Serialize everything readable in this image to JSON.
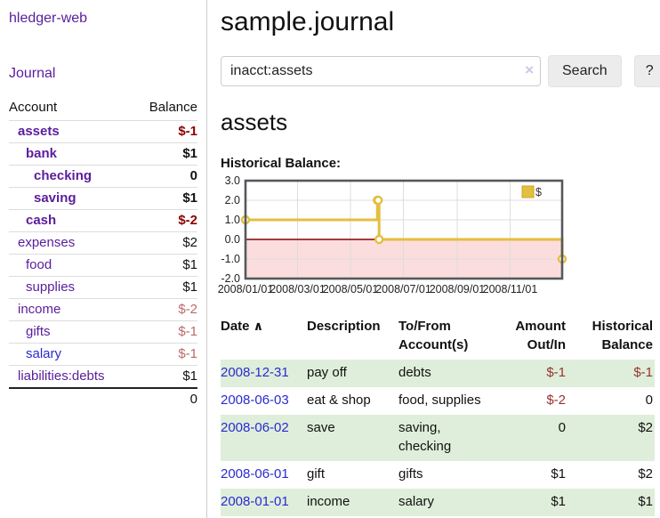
{
  "app": {
    "brand": "hledger-web",
    "nav_journal": "Journal"
  },
  "colors": {
    "link_purple": "#5a1d9b",
    "link_blue": "#2a2bd1",
    "negative_strong": "#8c0000",
    "negative_muted": "#bb6a6a",
    "negative_table": "#963232",
    "row_green": "#dfeeda",
    "chart_gold": "#e3bf3e",
    "chart_negative_fill": "#fbdddd",
    "chart_zero_line": "#8b0000"
  },
  "sidebar": {
    "accounts_header": {
      "account": "Account",
      "balance": "Balance"
    },
    "accounts": [
      {
        "name": "assets",
        "depth": 1,
        "bold": true,
        "balance": "$-1",
        "balance_style": "neg-strong"
      },
      {
        "name": "bank",
        "depth": 2,
        "bold": true,
        "balance": "$1",
        "balance_style": "strong"
      },
      {
        "name": "checking",
        "depth": 3,
        "bold": true,
        "balance": "0",
        "balance_style": "strong"
      },
      {
        "name": "saving",
        "depth": 3,
        "bold": true,
        "balance": "$1",
        "balance_style": "strong"
      },
      {
        "name": "cash",
        "depth": 2,
        "bold": true,
        "balance": "$-2",
        "balance_style": "neg-strong"
      },
      {
        "name": "expenses",
        "depth": 1,
        "bold": false,
        "balance": "$2",
        "balance_style": "plain"
      },
      {
        "name": "food",
        "depth": 2,
        "bold": false,
        "balance": "$1",
        "balance_style": "plain"
      },
      {
        "name": "supplies",
        "depth": 2,
        "bold": false,
        "balance": "$1",
        "balance_style": "plain"
      },
      {
        "name": "income",
        "depth": 1,
        "bold": false,
        "balance": "$-2",
        "balance_style": "neg-muted"
      },
      {
        "name": "gifts",
        "depth": 2,
        "bold": false,
        "balance": "$-1",
        "balance_style": "neg-muted"
      },
      {
        "name": "salary",
        "depth": 2,
        "bold": false,
        "balance": "$-1",
        "balance_style": "neg-muted",
        "link_color": "blue"
      },
      {
        "name": "liabilities:debts",
        "depth": 1,
        "bold": false,
        "balance": "$1",
        "balance_style": "plain"
      }
    ],
    "total": "0"
  },
  "main": {
    "title": "sample.journal",
    "search": {
      "value": "inacct:assets",
      "clear_icon": "×",
      "button": "Search",
      "help_button": "?"
    },
    "account_heading": "assets",
    "chart_label": "Historical Balance:"
  },
  "chart_data": {
    "type": "line",
    "step": true,
    "title": "Historical Balance:",
    "legend": "$",
    "legend_position": "top-right",
    "grid": true,
    "ylim": [
      -2.0,
      3.0
    ],
    "yticks": [
      "3.0",
      "2.0",
      "1.0",
      "0.0",
      "-1.0",
      "-2.0"
    ],
    "ytick_values": [
      3,
      2,
      1,
      0,
      -1,
      -2
    ],
    "xrange": [
      "2008-01-01",
      "2008-12-31"
    ],
    "xticks": [
      "2008/01/01",
      "2008/03/01",
      "2008/05/01",
      "2008/07/01",
      "2008/09/01",
      "2008/11/01"
    ],
    "series": [
      {
        "name": "$",
        "points": [
          {
            "date": "2008-01-01",
            "value": 1
          },
          {
            "date": "2008-06-01",
            "value": 2
          },
          {
            "date": "2008-06-02",
            "value": 2
          },
          {
            "date": "2008-06-03",
            "value": 0
          },
          {
            "date": "2008-12-31",
            "value": -1
          }
        ]
      }
    ]
  },
  "register": {
    "headers": {
      "date": "Date",
      "sort_icon": "∧",
      "description": "Description",
      "accounts": "To/From Account(s)",
      "amount": "Amount Out/In",
      "balance": "Historical Balance"
    },
    "rows": [
      {
        "date": "2008-12-31",
        "description": "pay off",
        "accounts": "debts",
        "amount": "$-1",
        "amount_neg": true,
        "balance": "$-1",
        "balance_neg": true
      },
      {
        "date": "2008-06-03",
        "description": "eat & shop",
        "accounts": "food, supplies",
        "amount": "$-2",
        "amount_neg": true,
        "balance": "0",
        "balance_neg": false
      },
      {
        "date": "2008-06-02",
        "description": "save",
        "accounts": "saving, checking",
        "amount": "0",
        "amount_neg": false,
        "balance": "$2",
        "balance_neg": false
      },
      {
        "date": "2008-06-01",
        "description": "gift",
        "accounts": "gifts",
        "amount": "$1",
        "amount_neg": false,
        "balance": "$2",
        "balance_neg": false
      },
      {
        "date": "2008-01-01",
        "description": "income",
        "accounts": "salary",
        "amount": "$1",
        "amount_neg": false,
        "balance": "$1",
        "balance_neg": false
      }
    ]
  }
}
